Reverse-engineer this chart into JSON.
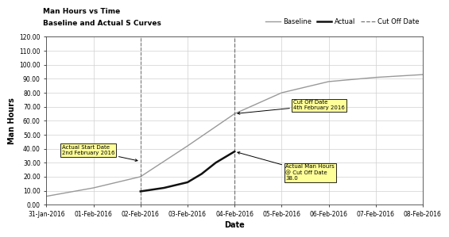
{
  "title_line1": "Man Hours vs Time",
  "title_line2": "Baseline and Actual S Curves",
  "xlabel": "Date",
  "ylabel": "Man Hours",
  "ylim": [
    0,
    120
  ],
  "yticks": [
    0,
    10,
    20,
    30,
    40,
    50,
    60,
    70,
    80,
    90,
    100,
    110,
    120
  ],
  "ytick_labels": [
    "0.00",
    "10.00",
    "20.00",
    "30.00",
    "40.00",
    "50.00",
    "60.00",
    "70.00",
    "80.00",
    "90.00",
    "100.00",
    "110.00",
    "120.00"
  ],
  "xmin": "2016-01-31",
  "xmax": "2016-02-08",
  "xtick_dates": [
    "2016-01-31",
    "2016-02-01",
    "2016-02-02",
    "2016-02-03",
    "2016-02-04",
    "2016-02-05",
    "2016-02-06",
    "2016-02-07",
    "2016-02-08"
  ],
  "xtick_labels": [
    "31-Jan-2016",
    "01-Feb-2016",
    "02-Feb-2016",
    "03-Feb-2016",
    "04-Feb-2016",
    "05-Feb-2016",
    "06-Feb-2016",
    "07-Feb-2016",
    "08-Feb-2016"
  ],
  "baseline_dates": [
    "2016-01-31",
    "2016-02-01",
    "2016-02-02",
    "2016-02-03",
    "2016-02-04",
    "2016-02-05",
    "2016-02-06",
    "2016-02-07",
    "2016-02-08"
  ],
  "baseline_values": [
    6,
    12,
    20,
    42,
    65,
    80,
    88,
    91,
    93
  ],
  "actual_dates": [
    "2016-02-02",
    "2016-02-02.5",
    "2016-02-03",
    "2016-02-03.3",
    "2016-02-03.6",
    "2016-02-04"
  ],
  "actual_values": [
    9.5,
    12,
    16,
    22,
    30,
    38
  ],
  "cutoff_date": "2016-02-04",
  "actual_start_date": "2016-02-02",
  "annotation_start_text": "Actual Start Date\n2nd February 2016",
  "annotation_cutoff_text": "Cut Off Date\n4th February 2016",
  "annotation_actual_text": "Actual Man Hours\n@ Cut Off Date\n38.0",
  "baseline_color": "#999999",
  "actual_color": "#111111",
  "cutoff_color": "#888888",
  "background_color": "#ffffff",
  "grid_color": "#d0d0d0",
  "annotation_box_color": "#ffff99"
}
